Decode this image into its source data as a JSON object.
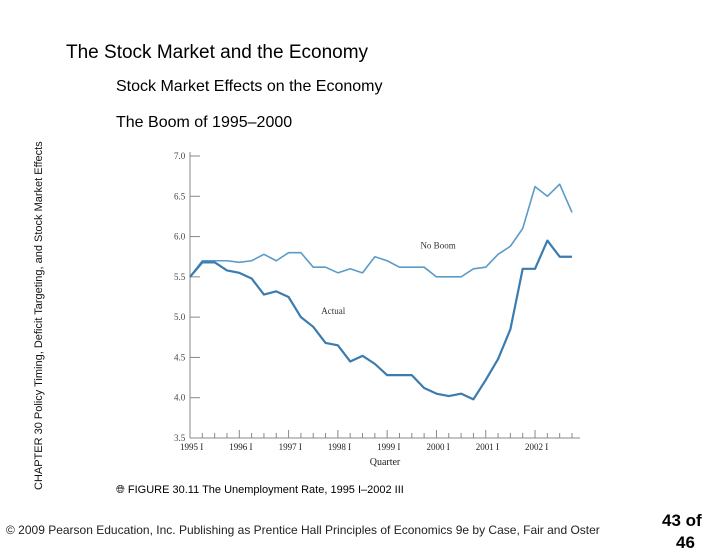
{
  "side_label": "CHAPTER 30 Policy Timing, Deficit Targeting, and Stock Market Effects",
  "slide_title": "The Stock Market and the Economy",
  "subtitle": "Stock Market Effects on the Economy",
  "subsubtitle": "The Boom of 1995–2000",
  "caption": {
    "icon": "globe-icon",
    "figure": "FIGURE 30.11",
    "text": "The Unemployment Rate, 1995 I–2002 III"
  },
  "footer": "© 2009 Pearson Education, Inc. Publishing as Prentice Hall Principles of Economics 9e by Case, Fair and Oster",
  "page_number": "43 of",
  "page_number_cont": "46",
  "chart_data": {
    "type": "line",
    "xlabel": "Quarter",
    "ylabel": "",
    "title": "",
    "ylim": [
      3.5,
      7.0
    ],
    "yticks": [
      "7.0",
      "6.5",
      "6.0",
      "5.5",
      "5.0",
      "4.5",
      "4.0",
      "3.5"
    ],
    "xticks": [
      "1995 I",
      "1996 I",
      "1997 I",
      "1998 I",
      "1999 I",
      "2000 I",
      "2001 I",
      "2002 I"
    ],
    "grid": false,
    "series": [
      {
        "name": "No Boom",
        "color": "#5b9bc8",
        "values": [
          5.5,
          5.7,
          5.7,
          5.7,
          5.68,
          5.7,
          5.78,
          5.7,
          5.8,
          5.8,
          5.62,
          5.62,
          5.55,
          5.6,
          5.55,
          5.75,
          5.7,
          5.62,
          5.62,
          5.62,
          5.5,
          5.5,
          5.5,
          5.6,
          5.62,
          5.78,
          5.88,
          6.1,
          6.62,
          6.5,
          6.65,
          6.3
        ]
      },
      {
        "name": "Actual",
        "color": "#3b7cb0",
        "values": [
          5.5,
          5.68,
          5.68,
          5.58,
          5.55,
          5.48,
          5.28,
          5.32,
          5.25,
          5.0,
          4.88,
          4.68,
          4.65,
          4.45,
          4.52,
          4.42,
          4.28,
          4.28,
          4.28,
          4.12,
          4.05,
          4.02,
          4.05,
          3.98,
          4.22,
          4.48,
          4.85,
          5.6,
          5.6,
          5.95,
          5.75,
          5.75
        ]
      }
    ]
  }
}
